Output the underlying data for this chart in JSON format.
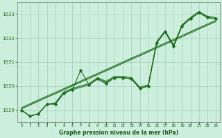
{
  "title": "Graphe pression niveau de la mer (hPa)",
  "x_values": [
    0,
    1,
    2,
    3,
    4,
    5,
    6,
    7,
    8,
    9,
    10,
    11,
    12,
    13,
    14,
    15,
    16,
    17,
    18,
    19,
    20,
    21,
    22,
    23
  ],
  "y_main": [
    1029.0,
    1028.75,
    1028.85,
    1029.25,
    1029.25,
    1029.7,
    1029.85,
    1030.65,
    1030.05,
    1030.3,
    1030.1,
    1030.35,
    1030.35,
    1030.3,
    1029.9,
    1030.0,
    1031.8,
    1032.25,
    1031.65,
    1032.5,
    1032.8,
    1033.05,
    1032.85,
    1032.8
  ],
  "y_smooth1": [
    1029.0,
    1028.75,
    1028.85,
    1029.25,
    1029.25,
    1029.7,
    1029.85,
    1029.95,
    1030.05,
    1030.3,
    1030.15,
    1030.35,
    1030.35,
    1030.3,
    1029.9,
    1030.0,
    1031.8,
    1032.25,
    1031.65,
    1032.5,
    1032.8,
    1033.05,
    1032.85,
    1032.8
  ],
  "y_smooth2": [
    1029.0,
    1028.75,
    1028.85,
    1029.25,
    1029.3,
    1029.75,
    1029.9,
    1030.0,
    1030.1,
    1030.35,
    1030.2,
    1030.4,
    1030.4,
    1030.35,
    1029.95,
    1030.05,
    1031.85,
    1032.3,
    1031.7,
    1032.55,
    1032.85,
    1033.1,
    1032.9,
    1032.85
  ],
  "y_linear1": [
    1029.05,
    1029.21,
    1029.37,
    1029.53,
    1029.68,
    1029.84,
    1030.0,
    1030.16,
    1030.32,
    1030.47,
    1030.63,
    1030.79,
    1030.95,
    1031.11,
    1031.26,
    1031.42,
    1031.58,
    1031.74,
    1031.89,
    1032.05,
    1032.21,
    1032.37,
    1032.53,
    1032.68
  ],
  "y_linear2": [
    1029.1,
    1029.26,
    1029.42,
    1029.58,
    1029.73,
    1029.89,
    1030.05,
    1030.21,
    1030.37,
    1030.52,
    1030.68,
    1030.84,
    1031.0,
    1031.16,
    1031.31,
    1031.47,
    1031.63,
    1031.79,
    1031.94,
    1032.1,
    1032.26,
    1032.42,
    1032.58,
    1032.73
  ],
  "ylim": [
    1028.5,
    1033.5
  ],
  "xlim": [
    -0.5,
    23.5
  ],
  "yticks": [
    1029,
    1030,
    1031,
    1032,
    1033
  ],
  "xticks": [
    0,
    1,
    2,
    3,
    4,
    5,
    6,
    7,
    8,
    9,
    10,
    11,
    12,
    13,
    14,
    15,
    16,
    17,
    18,
    19,
    20,
    21,
    22,
    23
  ],
  "bg_color": "#cceedd",
  "grid_color": "#aaccbb",
  "line_color": "#1a6b1a",
  "tick_label_color": "#1a6b1a",
  "title_color": "#1a5c1a",
  "line_width": 0.8,
  "marker_size": 2.5
}
